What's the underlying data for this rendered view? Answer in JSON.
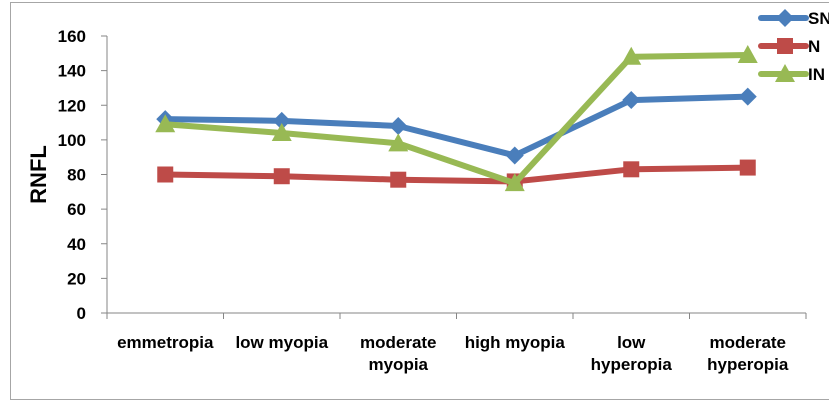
{
  "chart_data": {
    "type": "line",
    "categories": [
      [
        "emmetropia"
      ],
      [
        "low myopia"
      ],
      [
        "moderate",
        "myopia"
      ],
      [
        "high myopia"
      ],
      [
        "low",
        "hyperopia"
      ],
      [
        "moderate",
        "hyperopia"
      ]
    ],
    "series": [
      {
        "name": "SN",
        "color": "#4a7ebb",
        "marker": "diamond",
        "values": [
          112,
          111,
          108,
          91,
          123,
          125
        ]
      },
      {
        "name": "N",
        "color": "#be4b48",
        "marker": "square",
        "values": [
          80,
          79,
          77,
          76,
          83,
          84
        ]
      },
      {
        "name": "IN",
        "color": "#98b954",
        "marker": "triangle",
        "values": [
          109,
          104,
          98,
          75,
          148,
          149
        ]
      }
    ],
    "ylabel": "RNFL",
    "xlabel": "",
    "ylim": [
      0,
      160
    ],
    "yticks": [
      0,
      20,
      40,
      60,
      80,
      100,
      120,
      140,
      160
    ],
    "grid": false,
    "legend": "top-right"
  }
}
